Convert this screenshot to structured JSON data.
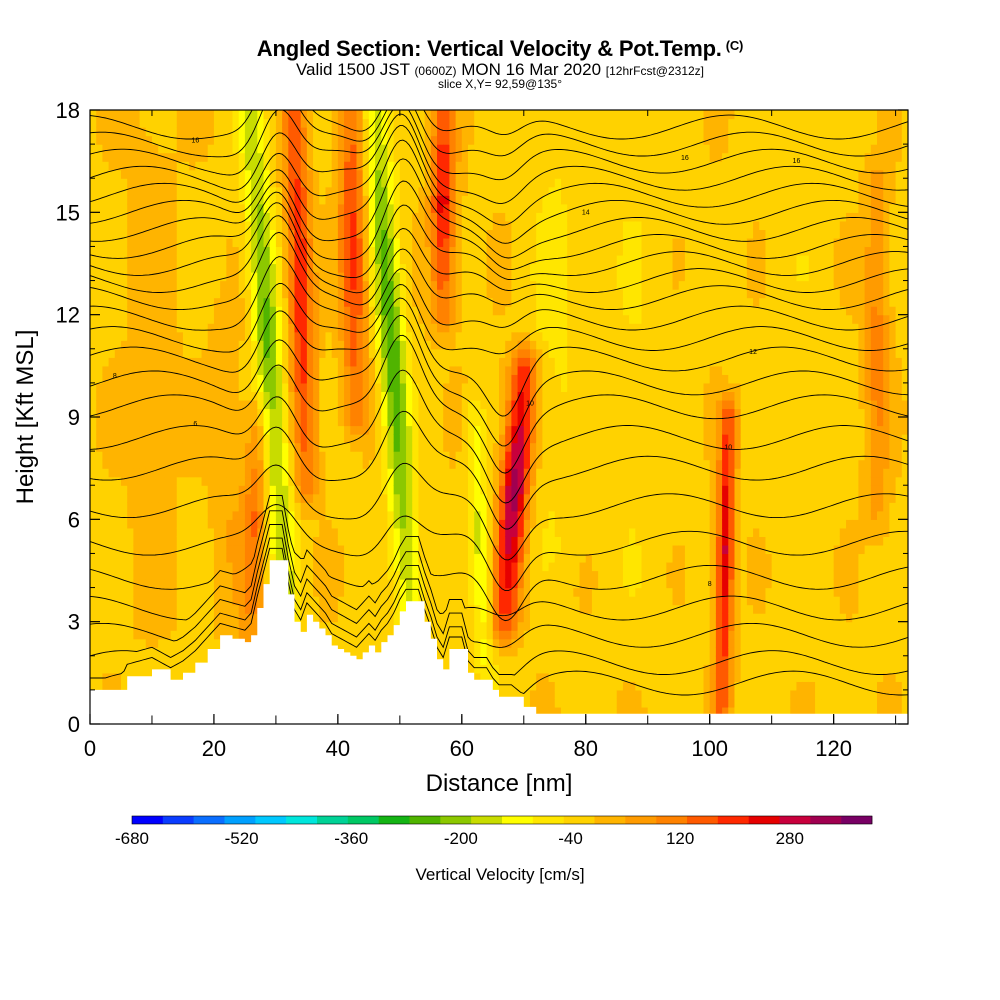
{
  "header": {
    "title": "Angled Section: Vertical Velocity & Pot.Temp.",
    "title_units": "(C)",
    "valid_prefix": "Valid 1500 JST",
    "valid_utc": "(0600Z)",
    "valid_date": "MON 16 Mar 2020",
    "forecast": "[12hrFcst@2312z]",
    "slice": "slice X,Y= 92,59@135°"
  },
  "chart_data": {
    "type": "heatmap",
    "xlabel": "Distance [nm]",
    "ylabel": "Height [Kft MSL]",
    "xlim": [
      0,
      132
    ],
    "ylim": [
      0,
      18
    ],
    "x_ticks": [
      "0",
      "20",
      "40",
      "60",
      "80",
      "100",
      "120"
    ],
    "y_ticks": [
      "0",
      "3",
      "6",
      "9",
      "12",
      "15",
      "18"
    ],
    "grid": false,
    "colorbar": {
      "label": "Vertical Velocity [cm/s]",
      "tick_labels": [
        "-680",
        "-520",
        "-360",
        "-200",
        "-40",
        "120",
        "280"
      ],
      "tick_values": [
        -680,
        -520,
        -360,
        -200,
        -40,
        120,
        280
      ],
      "range": [
        -680,
        400
      ],
      "colors": [
        "#0000ff",
        "#0a3cff",
        "#0a6eff",
        "#00a0ff",
        "#00c8ff",
        "#00e6dc",
        "#00d296",
        "#00c864",
        "#14b414",
        "#50b400",
        "#8cc800",
        "#c8dc00",
        "#ffff00",
        "#ffe600",
        "#ffd200",
        "#ffb400",
        "#ff9b00",
        "#ff8200",
        "#ff5a00",
        "#ff2800",
        "#e60000",
        "#c8003c",
        "#a00050",
        "#780064"
      ]
    },
    "terrain_kft": [
      [
        0,
        1.0
      ],
      [
        5,
        1.0
      ],
      [
        6,
        1.4
      ],
      [
        10,
        1.6
      ],
      [
        13,
        1.3
      ],
      [
        15,
        1.5
      ],
      [
        17,
        1.8
      ],
      [
        19,
        2.2
      ],
      [
        21,
        2.6
      ],
      [
        23,
        2.5
      ],
      [
        25,
        2.4
      ],
      [
        26,
        2.6
      ],
      [
        27,
        3.4
      ],
      [
        28,
        4.1
      ],
      [
        29,
        4.8
      ],
      [
        31,
        4.8
      ],
      [
        32,
        3.8
      ],
      [
        33,
        3.0
      ],
      [
        34,
        2.7
      ],
      [
        35,
        3.2
      ],
      [
        36,
        3.0
      ],
      [
        37,
        2.8
      ],
      [
        38,
        2.6
      ],
      [
        39,
        2.3
      ],
      [
        40,
        2.2
      ],
      [
        41,
        2.1
      ],
      [
        42,
        2.0
      ],
      [
        43,
        1.9
      ],
      [
        44,
        2.1
      ],
      [
        45,
        2.3
      ],
      [
        46,
        2.1
      ],
      [
        47,
        2.4
      ],
      [
        48,
        2.6
      ],
      [
        49,
        2.9
      ],
      [
        50,
        3.3
      ],
      [
        51,
        3.6
      ],
      [
        53,
        3.6
      ],
      [
        54,
        3.0
      ],
      [
        55,
        2.5
      ],
      [
        56,
        1.9
      ],
      [
        57,
        1.6
      ],
      [
        58,
        2.2
      ],
      [
        60,
        2.2
      ],
      [
        61,
        1.5
      ],
      [
        62,
        1.3
      ],
      [
        64,
        1.3
      ],
      [
        65,
        1.0
      ],
      [
        66,
        0.8
      ],
      [
        68,
        0.8
      ],
      [
        70,
        0.5
      ],
      [
        72,
        0.3
      ],
      [
        132,
        0.3
      ]
    ],
    "velocity_features": [
      {
        "x": 32,
        "z0": 3.0,
        "z1": 18.0,
        "lean": -6,
        "width": 2.2,
        "value": -230
      },
      {
        "x": 52,
        "z0": 2.5,
        "z1": 18.0,
        "lean": -6,
        "width": 2.2,
        "value": -260
      },
      {
        "x": 64,
        "z0": 1.0,
        "z1": 9.0,
        "lean": -2,
        "width": 1.6,
        "value": -140
      },
      {
        "x": 35,
        "z0": 7.0,
        "z1": 18.0,
        "lean": -2,
        "width": 2.0,
        "value": 250
      },
      {
        "x": 43,
        "z0": 9.0,
        "z1": 18.0,
        "lean": -1,
        "width": 2.2,
        "value": 220
      },
      {
        "x": 57,
        "z0": 12.0,
        "z1": 18.0,
        "lean": 0,
        "width": 2.0,
        "value": 260
      },
      {
        "x": 67,
        "z0": 3.0,
        "z1": 10.5,
        "lean": 3,
        "width": 2.3,
        "value": 360
      },
      {
        "x": 102,
        "z0": 0.5,
        "z1": 9.0,
        "lean": 1,
        "width": 1.4,
        "value": 300
      },
      {
        "x": 26,
        "z0": 2.5,
        "z1": 9.0,
        "lean": 1,
        "width": 2.0,
        "value": 150
      },
      {
        "x": 22,
        "z0": 3.0,
        "z1": 12.0,
        "lean": 0,
        "width": 2.5,
        "value": 60
      },
      {
        "x": 88,
        "z0": 2.0,
        "z1": 18.0,
        "lean": 0,
        "width": 6,
        "value": -30
      },
      {
        "x": 114,
        "z0": 2.0,
        "z1": 18.0,
        "lean": 0,
        "width": 5,
        "value": -20
      },
      {
        "x": 127,
        "z0": 6.0,
        "z1": 16.0,
        "lean": 0,
        "width": 2,
        "value": 120
      },
      {
        "x": 75,
        "z0": 5.0,
        "z1": 18.0,
        "lean": 0,
        "width": 4,
        "value": -50
      },
      {
        "x": 10,
        "z0": 3.0,
        "z1": 18.0,
        "lean": 0,
        "width": 4,
        "value": 40
      }
    ],
    "theta_contours_kft": [
      1.2,
      1.8,
      2.6,
      3.4,
      4.3,
      5.3,
      6.4,
      7.5,
      8.4,
      9.3,
      10.0,
      10.7,
      11.3,
      11.9,
      12.5,
      13.0,
      13.5,
      14.0,
      14.5,
      15.0,
      15.5,
      16.0,
      16.5,
      17.0,
      17.5
    ],
    "contour_labels": [
      {
        "x": 4,
        "z": 10.2,
        "text": "8"
      },
      {
        "x": 17,
        "z": 17.1,
        "text": "16"
      },
      {
        "x": 17,
        "z": 8.8,
        "text": "6"
      },
      {
        "x": 71,
        "z": 9.4,
        "text": "10"
      },
      {
        "x": 100,
        "z": 4.1,
        "text": "8"
      },
      {
        "x": 80,
        "z": 15.0,
        "text": "14"
      },
      {
        "x": 103,
        "z": 8.1,
        "text": "10"
      },
      {
        "x": 107,
        "z": 10.9,
        "text": "12"
      },
      {
        "x": 114,
        "z": 16.5,
        "text": "16"
      },
      {
        "x": 96,
        "z": 16.6,
        "text": "16"
      }
    ]
  }
}
